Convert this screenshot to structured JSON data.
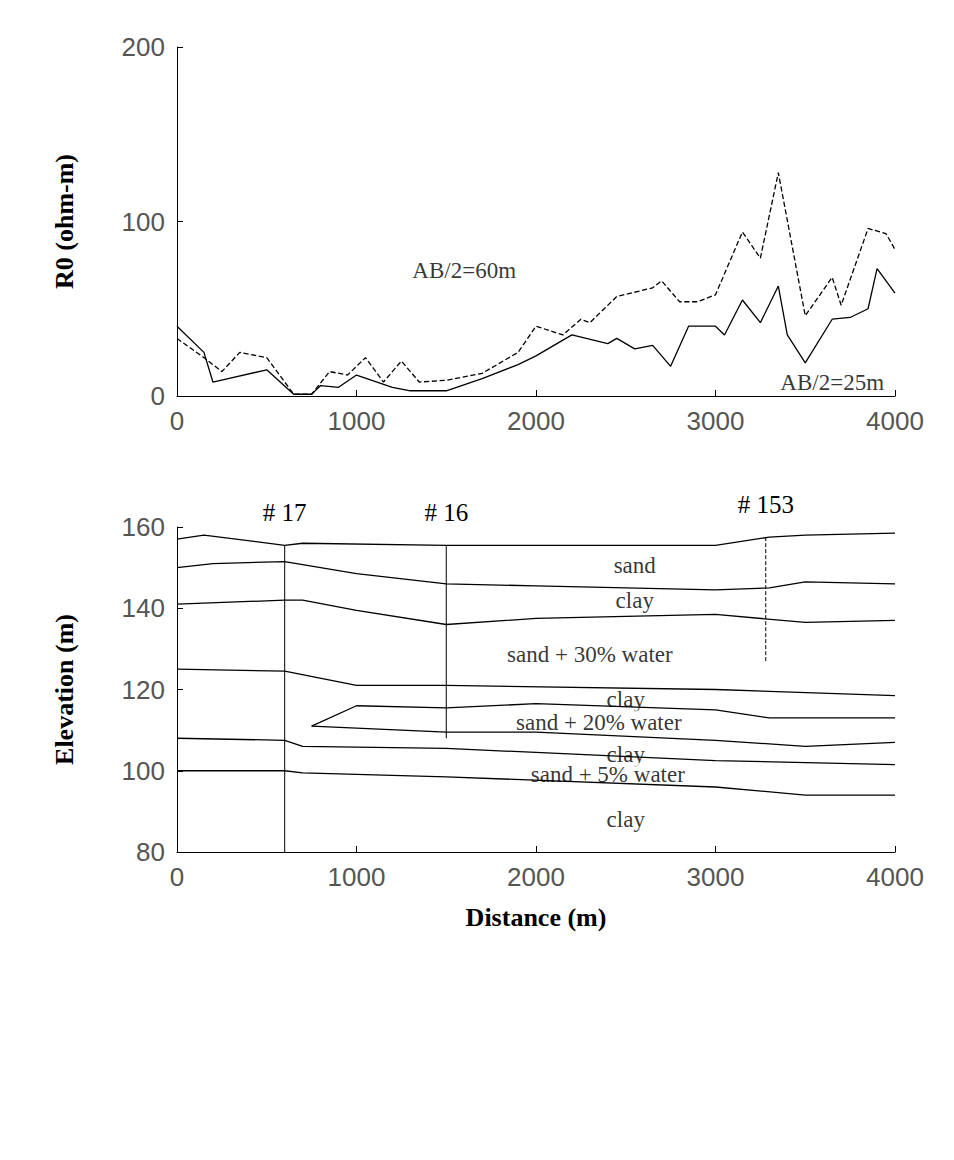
{
  "chart_data": [
    {
      "type": "line",
      "ylabel": "R0 (ohm-m)",
      "xlim": [
        0,
        4000
      ],
      "xticks": [
        0,
        1000,
        2000,
        3000,
        4000
      ],
      "ylim": [
        0,
        200
      ],
      "yticks": [
        0,
        100,
        200
      ],
      "grid": false,
      "series": [
        {
          "color": "#000000",
          "line_style": "dashed",
          "x": [
            0,
            150,
            250,
            350,
            500,
            650,
            750,
            850,
            950,
            1050,
            1150,
            1250,
            1350,
            1500,
            1700,
            1900,
            2000,
            2150,
            2250,
            2300,
            2450,
            2650,
            2700,
            2800,
            2900,
            3000,
            3150,
            3250,
            3350,
            3500,
            3650,
            3700,
            3850,
            3950,
            4000
          ],
          "values": [
            33,
            22,
            14,
            25,
            22,
            1,
            1,
            14,
            12,
            22,
            8,
            20,
            8,
            9,
            13,
            25,
            40,
            35,
            44,
            42,
            57,
            62,
            66,
            54,
            54,
            58,
            94,
            79,
            128,
            46,
            68,
            52,
            96,
            93,
            84
          ]
        },
        {
          "color": "#000000",
          "line_style": "solid",
          "x": [
            0,
            150,
            200,
            500,
            650,
            750,
            800,
            900,
            1000,
            1200,
            1300,
            1500,
            1700,
            1900,
            2000,
            2200,
            2400,
            2450,
            2550,
            2650,
            2750,
            2850,
            3000,
            3050,
            3150,
            3250,
            3350,
            3400,
            3500,
            3650,
            3750,
            3850,
            3900,
            4000
          ],
          "values": [
            40,
            25,
            8,
            15,
            1,
            1,
            6,
            5,
            12,
            5,
            3,
            3,
            10,
            18,
            23,
            35,
            30,
            33,
            27,
            29,
            17,
            40,
            40,
            35,
            55,
            42,
            63,
            35,
            19,
            44,
            45,
            50,
            73,
            59
          ]
        }
      ],
      "annotations": [
        {
          "text": "AB/2=60m",
          "x": 1600,
          "y": 72
        },
        {
          "text": "AB/2=25m",
          "x": 3650,
          "y": 8
        }
      ]
    },
    {
      "type": "line",
      "xlabel": "Distance (m)",
      "ylabel": "Elevation (m)",
      "xlim": [
        0,
        4000
      ],
      "xticks": [
        0,
        1000,
        2000,
        3000,
        4000
      ],
      "ylim": [
        80,
        160
      ],
      "yticks": [
        80,
        100,
        120,
        140,
        160
      ],
      "grid": false,
      "series": [
        {
          "color": "#000000",
          "line_style": "solid",
          "x": [
            0,
            150,
            600,
            700,
            1500,
            3000,
            3300,
            3500,
            4000
          ],
          "values": [
            157,
            158,
            155.5,
            156,
            155.5,
            155.5,
            157.5,
            158,
            158.5
          ]
        },
        {
          "color": "#000000",
          "line_style": "solid",
          "x": [
            0,
            200,
            600,
            1000,
            1500,
            2000,
            3000,
            3300,
            3500,
            4000
          ],
          "values": [
            150,
            151,
            151.5,
            148.5,
            146,
            145.5,
            144.5,
            145,
            146.5,
            146
          ]
        },
        {
          "color": "#000000",
          "line_style": "solid",
          "x": [
            0,
            600,
            700,
            1000,
            1500,
            2000,
            3000,
            3500,
            4000
          ],
          "values": [
            141,
            142,
            142,
            139.5,
            136,
            137.5,
            138.5,
            136.5,
            137
          ]
        },
        {
          "color": "#000000",
          "line_style": "solid",
          "x": [
            0,
            600,
            1000,
            1500,
            3000,
            4000
          ],
          "values": [
            125,
            124.5,
            121,
            121,
            120,
            118.5
          ]
        },
        {
          "color": "#000000",
          "line_style": "solid",
          "x": [
            750,
            1000,
            1500,
            2000,
            3000,
            3300,
            4000
          ],
          "values": [
            111,
            116,
            115.5,
            116.5,
            115,
            113,
            113
          ]
        },
        {
          "color": "#000000",
          "line_style": "solid",
          "x": [
            750,
            1500,
            2000,
            3000,
            3500,
            4000
          ],
          "values": [
            111,
            109.5,
            109.5,
            107.5,
            106,
            107
          ]
        },
        {
          "color": "#000000",
          "line_style": "solid",
          "x": [
            0,
            600,
            700,
            1500,
            2000,
            3000,
            4000
          ],
          "values": [
            108,
            107.5,
            106,
            105.5,
            104.5,
            102.5,
            101.5
          ]
        },
        {
          "color": "#000000",
          "line_style": "solid",
          "x": [
            0,
            600,
            700,
            1500,
            3000,
            3500,
            4000
          ],
          "values": [
            100,
            100,
            99.5,
            98.5,
            96,
            94,
            94
          ]
        }
      ],
      "wells": [
        {
          "label": "# 17",
          "x": 600,
          "top": 155.5,
          "bottom": 80,
          "line_style": "solid"
        },
        {
          "label": "# 16",
          "x": 1500,
          "top": 155.5,
          "bottom": 108,
          "line_style": "solid"
        },
        {
          "label": "# 153",
          "x": 3280,
          "top": 157.5,
          "bottom": 127,
          "line_style": "dashed"
        }
      ],
      "annotations": [
        {
          "text": "sand",
          "x": 2550,
          "y": 150.5
        },
        {
          "text": "clay",
          "x": 2550,
          "y": 142
        },
        {
          "text": "sand + 30% water",
          "x": 2300,
          "y": 128.5
        },
        {
          "text": "clay",
          "x": 2500,
          "y": 117.5
        },
        {
          "text": "sand + 20% water",
          "x": 2350,
          "y": 112
        },
        {
          "text": "clay",
          "x": 2500,
          "y": 104
        },
        {
          "text": "sand + 5% water",
          "x": 2400,
          "y": 99
        },
        {
          "text": "clay",
          "x": 2500,
          "y": 88
        }
      ]
    }
  ]
}
